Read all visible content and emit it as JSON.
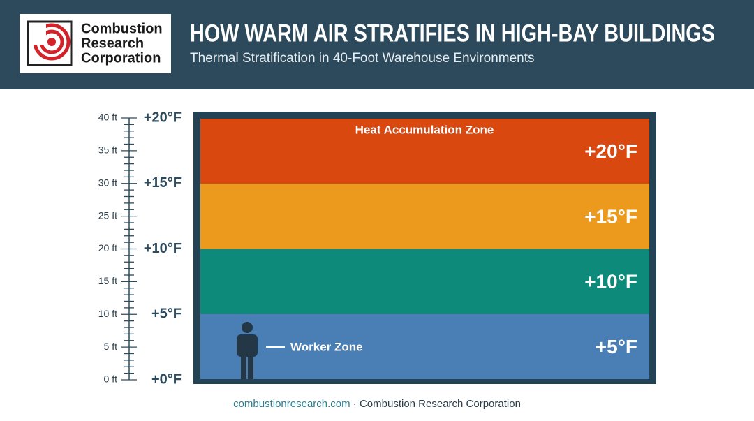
{
  "header": {
    "logo_lines": [
      "Combustion",
      "Research",
      "Corporation"
    ],
    "title": "HOW WARM AIR STRATIFIES IN HIGH-BAY BUILDINGS",
    "subtitle": "Thermal Stratification in 40-Foot Warehouse Environments"
  },
  "scale": {
    "height_labels": [
      "40 ft",
      "35 ft",
      "30 ft",
      "25 ft",
      "20 ft",
      "15 ft",
      "10 ft",
      "5 ft",
      "0 ft"
    ],
    "temp_labels": [
      "+20°F",
      "+15°F",
      "+10°F",
      "+5°F",
      "+0°F"
    ]
  },
  "zones": [
    {
      "label": "Heat Accumulation Zone",
      "temp": "+20°F",
      "color": "#d9480f"
    },
    {
      "temp": "+15°F",
      "color": "#ec9a1e"
    },
    {
      "temp": "+10°F",
      "color": "#0e8a7a"
    },
    {
      "label": "Worker Zone",
      "temp": "+5°F",
      "color": "#4a7fb5"
    }
  ],
  "footer": {
    "url": "combustionresearch.com",
    "org": " · Combustion Research Corporation"
  }
}
